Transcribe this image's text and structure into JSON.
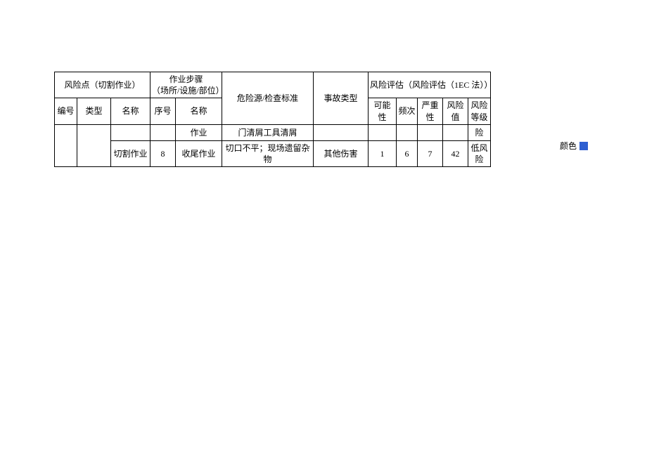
{
  "table": {
    "header": {
      "risk_point_group": "风险点（切割作业）",
      "step_group": "作业步骤\n（场所/设施/部位）",
      "hazard": "危险源/检查标准",
      "accident": "事故类型",
      "assessment_group": "风险评估（风险评估（1EC 法））",
      "sub": {
        "id": "编号",
        "type": "类型",
        "name": "名称",
        "seq": "序号",
        "step_name": "名称",
        "possibility": "可能性",
        "frequency": "频次",
        "severity": "严重性",
        "value": "风险值",
        "level": "风险\n等级"
      }
    },
    "rows": [
      {
        "id": "",
        "type": "",
        "name": "",
        "seq": "",
        "step_name": "作业",
        "hazard": "门清屑工具清屑",
        "accident": "",
        "p": "",
        "f": "",
        "s": "",
        "v": "",
        "level": "险"
      },
      {
        "id": "",
        "type": "",
        "name": "切割作业",
        "seq": "8",
        "step_name": "收尾作业",
        "hazard": "切口不平；现场遗留杂物",
        "accident": "其他伤害",
        "p": "1",
        "f": "6",
        "s": "7",
        "v": "42",
        "level": "低风险"
      }
    ],
    "colors": {
      "border": "#000000",
      "text": "#000000",
      "background": "#ffffff"
    }
  },
  "legend": {
    "label": "颜色",
    "swatch_color": "#2e5fd1"
  }
}
